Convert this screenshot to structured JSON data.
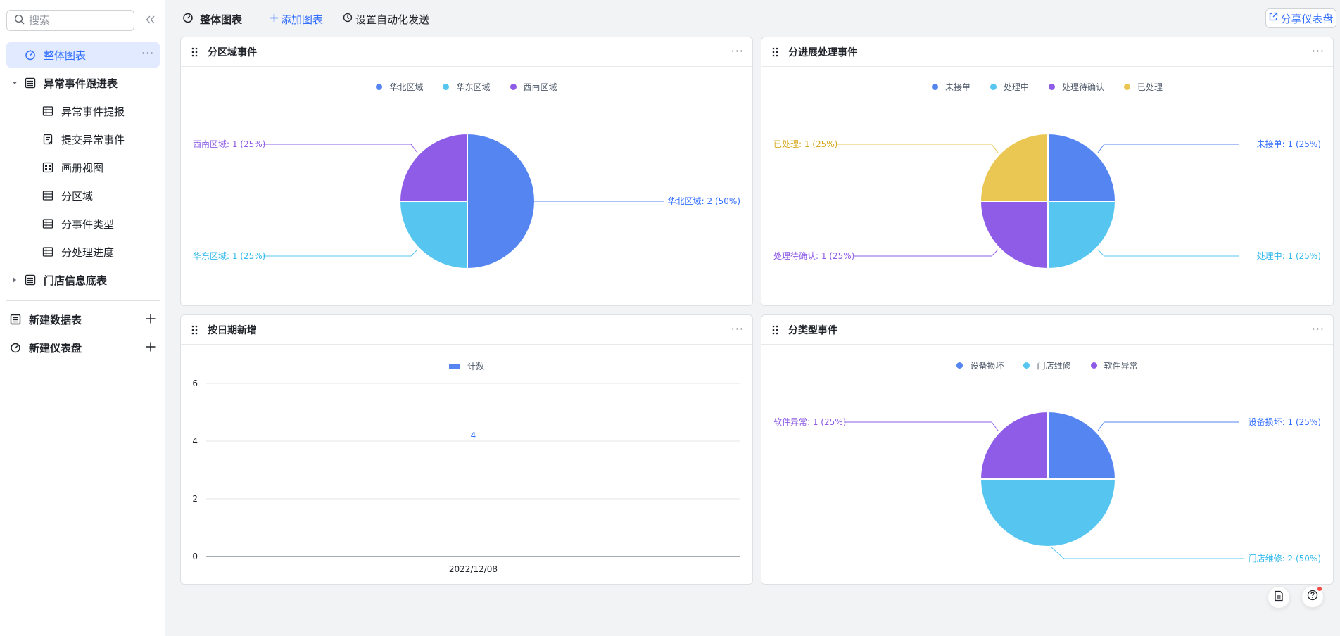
{
  "sidebar": {
    "search_placeholder": "搜索",
    "items": [
      {
        "label": "整体图表",
        "icon": "dashboard-icon"
      },
      {
        "label": "异常事件跟进表",
        "icon": "table-icon"
      },
      {
        "label": "异常事件提报",
        "icon": "grid-view-icon"
      },
      {
        "label": "提交异常事件",
        "icon": "form-icon"
      },
      {
        "label": "画册视图",
        "icon": "gallery-icon"
      },
      {
        "label": "分区域",
        "icon": "grid-view-icon"
      },
      {
        "label": "分事件类型",
        "icon": "grid-view-icon"
      },
      {
        "label": "分处理进度",
        "icon": "grid-view-icon"
      },
      {
        "label": "门店信息底表",
        "icon": "table-icon"
      }
    ],
    "new_table": "新建数据表",
    "new_dashboard": "新建仪表盘"
  },
  "topbar": {
    "title": "整体图表",
    "add_chart": "添加图表",
    "automation": "设置自动化发送",
    "share": "分享仪表盘"
  },
  "colors": {
    "blue": "#5585f1",
    "cyan": "#56c6f0",
    "purple": "#8e5ce6",
    "yellow": "#eac653",
    "accent": "#3370ff"
  },
  "cards": [
    {
      "title": "分区域事件"
    },
    {
      "title": "分进展处理事件"
    },
    {
      "title": "按日期新增"
    },
    {
      "title": "分类型事件"
    }
  ],
  "chart_data": [
    {
      "type": "pie",
      "title": "分区域事件",
      "legend": [
        "华北区域",
        "华东区域",
        "西南区域"
      ],
      "slices": [
        {
          "name": "华北区域",
          "value": 2,
          "pct": "50%",
          "label": "华北区域: 2 (50%)"
        },
        {
          "name": "华东区域",
          "value": 1,
          "pct": "25%",
          "label": "华东区域: 1 (25%)"
        },
        {
          "name": "西南区域",
          "value": 1,
          "pct": "25%",
          "label": "西南区域: 1 (25%)"
        }
      ]
    },
    {
      "type": "pie",
      "title": "分进展处理事件",
      "legend": [
        "未接单",
        "处理中",
        "处理待确认",
        "已处理"
      ],
      "slices": [
        {
          "name": "未接单",
          "value": 1,
          "pct": "25%",
          "label": "未接单: 1 (25%)"
        },
        {
          "name": "处理中",
          "value": 1,
          "pct": "25%",
          "label": "处理中: 1 (25%)"
        },
        {
          "name": "处理待确认",
          "value": 1,
          "pct": "25%",
          "label": "处理待确认: 1 (25%)"
        },
        {
          "name": "已处理",
          "value": 1,
          "pct": "25%",
          "label": "已处理: 1 (25%)"
        }
      ]
    },
    {
      "type": "bar",
      "title": "按日期新增",
      "legend": [
        "计数"
      ],
      "categories": [
        "2022/12/08"
      ],
      "values": [
        4
      ],
      "yticks": [
        "0",
        "2",
        "4",
        "6"
      ],
      "ylim": [
        0,
        6
      ]
    },
    {
      "type": "pie",
      "title": "分类型事件",
      "legend": [
        "设备损坏",
        "门店维修",
        "软件异常"
      ],
      "slices": [
        {
          "name": "设备损坏",
          "value": 1,
          "pct": "25%",
          "label": "设备损坏: 1 (25%)"
        },
        {
          "name": "门店维修",
          "value": 2,
          "pct": "50%",
          "label": "门店维修: 2 (50%)"
        },
        {
          "name": "软件异常",
          "value": 1,
          "pct": "25%",
          "label": "软件异常: 1 (25%)"
        }
      ]
    }
  ]
}
